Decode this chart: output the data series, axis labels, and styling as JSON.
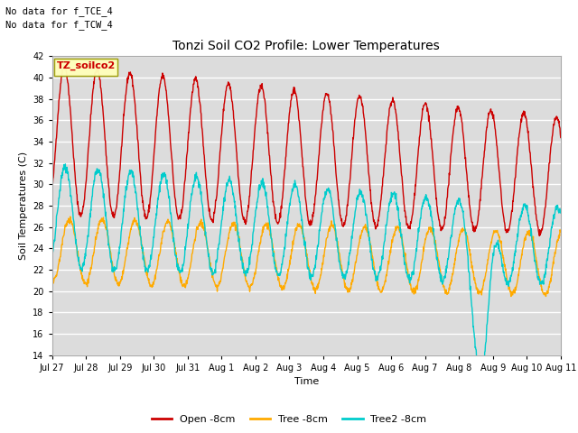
{
  "title": "Tonzi Soil CO2 Profile: Lower Temperatures",
  "xlabel": "Time",
  "ylabel": "Soil Temperatures (C)",
  "ylim": [
    14,
    42
  ],
  "yticks": [
    14,
    16,
    18,
    20,
    22,
    24,
    26,
    28,
    30,
    32,
    34,
    36,
    38,
    40,
    42
  ],
  "xtick_labels": [
    "Jul 27",
    "Jul 28",
    "Jul 29",
    "Jul 30",
    "Jul 31",
    "Aug 1",
    "Aug 2",
    "Aug 3",
    "Aug 4",
    "Aug 5",
    "Aug 6",
    "Aug 7",
    "Aug 8",
    "Aug 9",
    "Aug 10",
    "Aug 11"
  ],
  "colors": {
    "open": "#cc0000",
    "tree": "#ffaa00",
    "tree2": "#00cccc",
    "bg_plot": "#dcdcdc",
    "bg_fig": "#ffffff",
    "grid": "#ffffff"
  },
  "no_data_text_1": "No data for f_TCE_4",
  "no_data_text_2": "No data for f_TCW_4",
  "legend_box_label": "TZ_soilco2",
  "legend_entries": [
    "Open -8cm",
    "Tree -8cm",
    "Tree2 -8cm"
  ],
  "n_days": 15.5,
  "pts_per_day": 96,
  "figsize": [
    6.4,
    4.8
  ],
  "dpi": 100
}
